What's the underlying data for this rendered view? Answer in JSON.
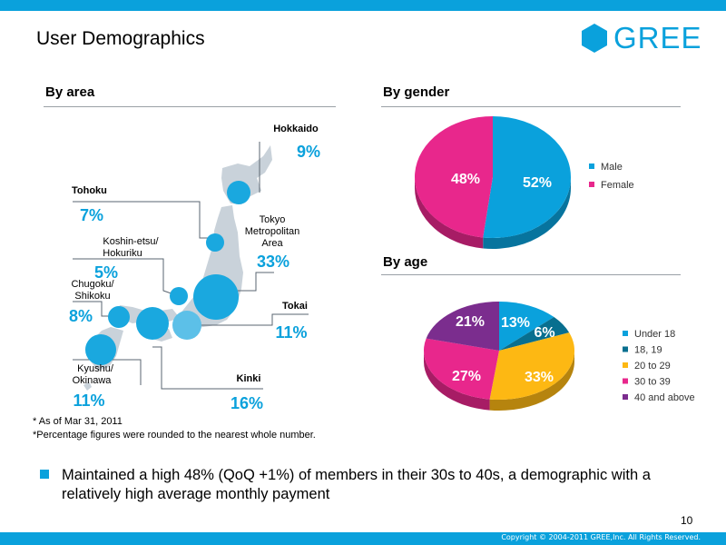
{
  "slide": {
    "title": "User Demographics",
    "logo_text": "GREE",
    "page_number": "10",
    "copyright": "Copyright © 2004-2011 GREE,Inc. All Rights Reserved.",
    "brand_color": "#0aa1dc"
  },
  "by_area": {
    "heading": "By area",
    "regions": [
      {
        "name": "Hokkaido",
        "value_label": "9%"
      },
      {
        "name": "Tohoku",
        "value_label": "7%"
      },
      {
        "name": "Tokyo Metropolitan Area",
        "value_label": "33%"
      },
      {
        "name": "Koshin-etsu/ Hokuriku",
        "value_label": "5%"
      },
      {
        "name": "Chugoku/ Shikoku",
        "value_label": "8%"
      },
      {
        "name": "Tokai",
        "value_label": "11%"
      },
      {
        "name": "Kyushu/ Okinawa",
        "value_label": "11%"
      },
      {
        "name": "Kinki",
        "value_label": "16%"
      }
    ],
    "notes": [
      "* As of Mar 31, 2011",
      "*Percentage figures were rounded to the nearest whole number."
    ]
  },
  "by_gender": {
    "heading": "By gender"
  },
  "by_age": {
    "heading": "By age"
  },
  "bullet": "Maintained a high 48% (QoQ +1%) of members in their 30s to 40s, a demographic with a relatively high average monthly payment",
  "chart_data": [
    {
      "type": "pie",
      "title": "By gender",
      "categories": [
        "Male",
        "Female"
      ],
      "values": [
        52,
        48
      ],
      "value_labels": [
        "52%",
        "48%"
      ],
      "colors": [
        "#0aa1dc",
        "#e8278c"
      ],
      "legend": "right"
    },
    {
      "type": "pie",
      "title": "By age",
      "categories": [
        "Under 18",
        "18, 19",
        "20 to 29",
        "30 to 39",
        "40 and above"
      ],
      "values": [
        13,
        6,
        33,
        27,
        21
      ],
      "value_labels": [
        "13%",
        "6%",
        "33%",
        "27%",
        "21%"
      ],
      "colors": [
        "#0aa1dc",
        "#086f8f",
        "#fdb813",
        "#e8278c",
        "#7b2d8e"
      ],
      "legend": "right"
    }
  ]
}
